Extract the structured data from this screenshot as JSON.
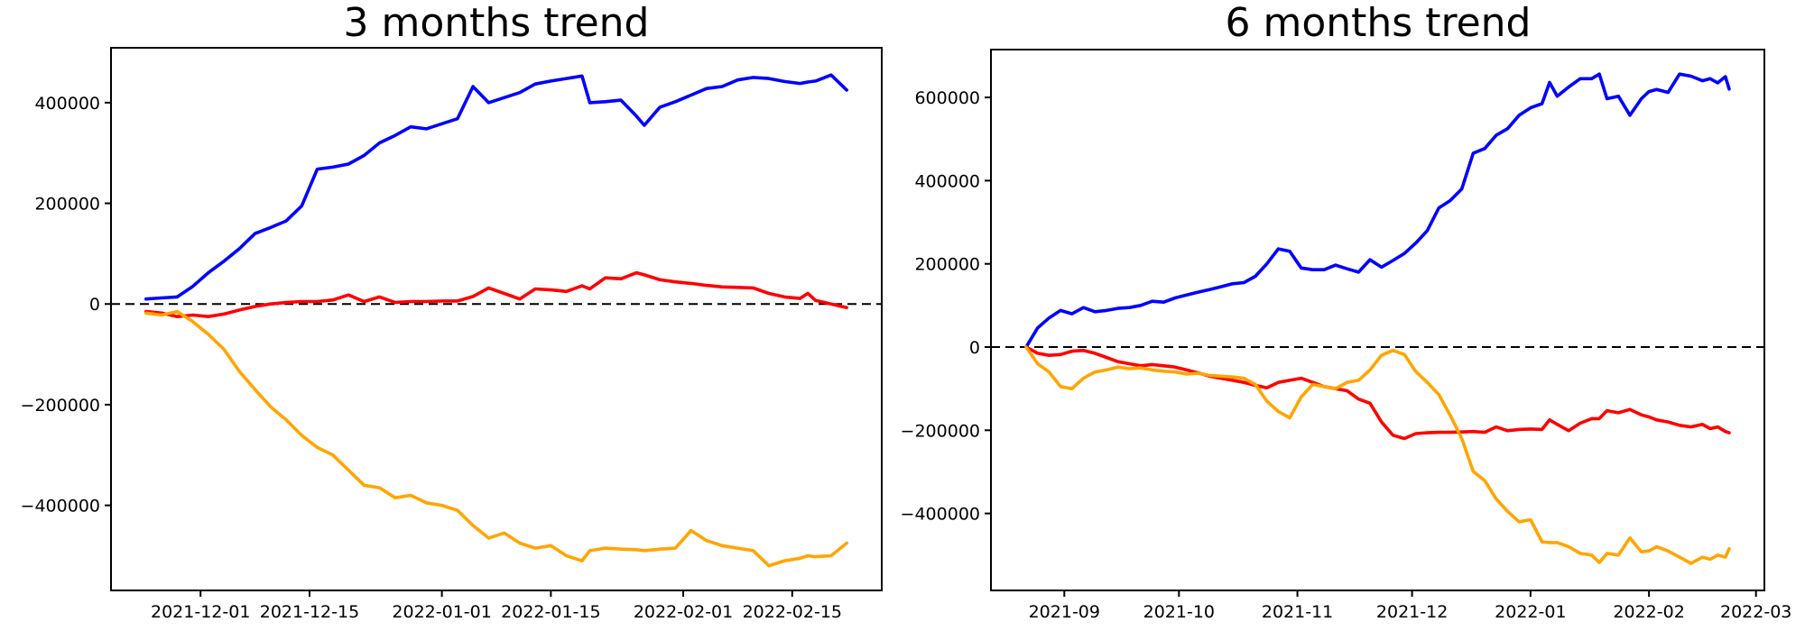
{
  "figure": {
    "background": "#ffffff",
    "spine_color": "#000000",
    "tick_color": "#000000"
  },
  "chart_data": [
    {
      "type": "line",
      "title": "3 months trend",
      "grid": false,
      "legend": null,
      "zero_line": {
        "style": "dashed",
        "color": "#000000",
        "y": 0
      },
      "x_axis": {
        "tick_labels": [
          "2021-12-01",
          "2021-12-15",
          "2022-01-01",
          "2022-01-15",
          "2022-02-01",
          "2022-02-15"
        ],
        "tick_dates": [
          "2021-12-01",
          "2021-12-15",
          "2022-01-01",
          "2022-01-15",
          "2022-02-01",
          "2022-02-15"
        ]
      },
      "y_axis": {
        "ylim": [
          -569000,
          509000
        ],
        "tick_values": [
          -400000,
          -200000,
          0,
          200000,
          400000
        ],
        "tick_labels": [
          "−400000",
          "−200000",
          "0",
          "200000",
          "400000"
        ]
      },
      "x": [
        "2021-11-24",
        "2021-11-26",
        "2021-11-28",
        "2021-11-30",
        "2021-12-02",
        "2021-12-04",
        "2021-12-06",
        "2021-12-08",
        "2021-12-10",
        "2021-12-12",
        "2021-12-14",
        "2021-12-16",
        "2021-12-18",
        "2021-12-20",
        "2021-12-22",
        "2021-12-24",
        "2021-12-26",
        "2021-12-28",
        "2021-12-30",
        "2022-01-01",
        "2022-01-03",
        "2022-01-05",
        "2022-01-07",
        "2022-01-09",
        "2022-01-11",
        "2022-01-13",
        "2022-01-15",
        "2022-01-17",
        "2022-01-19",
        "2022-01-20",
        "2022-01-22",
        "2022-01-24",
        "2022-01-26",
        "2022-01-27",
        "2022-01-29",
        "2022-01-31",
        "2022-02-02",
        "2022-02-04",
        "2022-02-06",
        "2022-02-08",
        "2022-02-10",
        "2022-02-12",
        "2022-02-14",
        "2022-02-16",
        "2022-02-17",
        "2022-02-18",
        "2022-02-20",
        "2022-02-22"
      ],
      "series": [
        {
          "name": "blue",
          "color": "#0000ff",
          "values": [
            10000,
            12000,
            14000,
            35000,
            62000,
            85000,
            110000,
            140000,
            152000,
            165000,
            195000,
            268000,
            272000,
            278000,
            295000,
            320000,
            335000,
            352000,
            348000,
            358000,
            368000,
            432000,
            400000,
            410000,
            420000,
            437000,
            443000,
            448000,
            453000,
            400000,
            402000,
            405000,
            373000,
            355000,
            391000,
            402000,
            415000,
            428000,
            432000,
            445000,
            450000,
            448000,
            442000,
            438000,
            441000,
            443000,
            455000,
            425000
          ]
        },
        {
          "name": "red",
          "color": "#ff0000",
          "values": [
            -15000,
            -18000,
            -25000,
            -22000,
            -25000,
            -20000,
            -12000,
            -5000,
            0,
            3000,
            5000,
            5000,
            8000,
            18000,
            5000,
            14000,
            3000,
            5000,
            5000,
            6000,
            6000,
            15000,
            32000,
            21000,
            10000,
            30000,
            28000,
            25000,
            36000,
            30000,
            52000,
            50000,
            62000,
            58000,
            48000,
            44000,
            41000,
            37000,
            34000,
            33000,
            32000,
            21000,
            14000,
            11000,
            21000,
            7000,
            0,
            -7000
          ]
        },
        {
          "name": "orange",
          "color": "#ffa500",
          "values": [
            -18000,
            -22000,
            -15000,
            -35000,
            -60000,
            -90000,
            -134000,
            -170000,
            -204000,
            -230000,
            -261000,
            -285000,
            -300000,
            -330000,
            -360000,
            -365000,
            -385000,
            -380000,
            -395000,
            -400000,
            -410000,
            -440000,
            -465000,
            -455000,
            -475000,
            -485000,
            -480000,
            -500000,
            -510000,
            -490000,
            -485000,
            -487000,
            -488000,
            -490000,
            -487000,
            -485000,
            -450000,
            -470000,
            -480000,
            -485000,
            -490000,
            -520000,
            -510000,
            -505000,
            -500000,
            -502000,
            -500000,
            -475000
          ]
        }
      ]
    },
    {
      "type": "line",
      "title": "6 months trend",
      "grid": false,
      "legend": null,
      "zero_line": {
        "style": "dashed",
        "color": "#000000",
        "y": 0
      },
      "x_axis": {
        "tick_labels": [
          "2021-09",
          "2021-10",
          "2021-11",
          "2021-12",
          "2022-01",
          "2022-02",
          "2022-03"
        ],
        "tick_dates": [
          "2021-09-01",
          "2021-10-01",
          "2021-11-01",
          "2021-12-01",
          "2022-01-01",
          "2022-02-01",
          "2022-03-01"
        ]
      },
      "y_axis": {
        "ylim": [
          -585000,
          715000
        ],
        "tick_values": [
          -400000,
          -200000,
          0,
          200000,
          400000,
          600000
        ],
        "tick_labels": [
          "−400000",
          "−200000",
          "0",
          "200000",
          "400000",
          "600000"
        ]
      },
      "x": [
        "2021-08-22",
        "2021-08-25",
        "2021-08-28",
        "2021-08-31",
        "2021-09-03",
        "2021-09-06",
        "2021-09-09",
        "2021-09-12",
        "2021-09-15",
        "2021-09-18",
        "2021-09-21",
        "2021-09-24",
        "2021-09-27",
        "2021-09-30",
        "2021-10-03",
        "2021-10-06",
        "2021-10-09",
        "2021-10-12",
        "2021-10-15",
        "2021-10-18",
        "2021-10-21",
        "2021-10-24",
        "2021-10-27",
        "2021-10-30",
        "2021-11-02",
        "2021-11-05",
        "2021-11-08",
        "2021-11-11",
        "2021-11-14",
        "2021-11-17",
        "2021-11-20",
        "2021-11-23",
        "2021-11-26",
        "2021-11-29",
        "2021-12-02",
        "2021-12-05",
        "2021-12-08",
        "2021-12-11",
        "2021-12-14",
        "2021-12-17",
        "2021-12-20",
        "2021-12-23",
        "2021-12-26",
        "2021-12-29",
        "2022-01-01",
        "2022-01-04",
        "2022-01-06",
        "2022-01-08",
        "2022-01-11",
        "2022-01-14",
        "2022-01-17",
        "2022-01-19",
        "2022-01-21",
        "2022-01-24",
        "2022-01-27",
        "2022-01-30",
        "2022-02-01",
        "2022-02-03",
        "2022-02-06",
        "2022-02-09",
        "2022-02-12",
        "2022-02-15",
        "2022-02-17",
        "2022-02-19",
        "2022-02-21",
        "2022-02-22"
      ],
      "series": [
        {
          "name": "blue",
          "color": "#0000ff",
          "values": [
            0,
            46000,
            70000,
            88000,
            80000,
            95000,
            85000,
            88000,
            93000,
            95000,
            100000,
            110000,
            108000,
            118000,
            125000,
            132000,
            138000,
            145000,
            152000,
            155000,
            170000,
            200000,
            236000,
            230000,
            190000,
            186000,
            186000,
            197000,
            188000,
            180000,
            210000,
            192000,
            208000,
            225000,
            250000,
            280000,
            334000,
            352000,
            380000,
            466000,
            477000,
            509000,
            525000,
            557000,
            575000,
            585000,
            636000,
            603000,
            625000,
            645000,
            645000,
            656000,
            597000,
            603000,
            557000,
            597000,
            614000,
            619000,
            612000,
            656000,
            651000,
            640000,
            645000,
            635000,
            650000,
            620000
          ]
        },
        {
          "name": "red",
          "color": "#ff0000",
          "values": [
            0,
            -15000,
            -20000,
            -18000,
            -10000,
            -8000,
            -15000,
            -25000,
            -35000,
            -40000,
            -45000,
            -42000,
            -45000,
            -48000,
            -55000,
            -62000,
            -70000,
            -75000,
            -80000,
            -85000,
            -92000,
            -98000,
            -85000,
            -80000,
            -75000,
            -85000,
            -95000,
            -100000,
            -105000,
            -125000,
            -135000,
            -180000,
            -212000,
            -220000,
            -208000,
            -206000,
            -205000,
            -205000,
            -204000,
            -203000,
            -205000,
            -192000,
            -201000,
            -198000,
            -197000,
            -198000,
            -175000,
            -186000,
            -201000,
            -183000,
            -172000,
            -172000,
            -153000,
            -158000,
            -150000,
            -163000,
            -168000,
            -175000,
            -180000,
            -188000,
            -192000,
            -186000,
            -196000,
            -192000,
            -203000,
            -206000
          ]
        },
        {
          "name": "orange",
          "color": "#ffa500",
          "values": [
            0,
            -40000,
            -60000,
            -95000,
            -100000,
            -75000,
            -60000,
            -55000,
            -48000,
            -52000,
            -50000,
            -55000,
            -58000,
            -60000,
            -65000,
            -63000,
            -68000,
            -70000,
            -72000,
            -75000,
            -90000,
            -130000,
            -155000,
            -170000,
            -120000,
            -90000,
            -95000,
            -100000,
            -85000,
            -80000,
            -55000,
            -20000,
            -8000,
            -18000,
            -59000,
            -85000,
            -114000,
            -164000,
            -220000,
            -299000,
            -321000,
            -365000,
            -395000,
            -420000,
            -415000,
            -468000,
            -470000,
            -470000,
            -480000,
            -496000,
            -500000,
            -518000,
            -496000,
            -500000,
            -459000,
            -492000,
            -490000,
            -480000,
            -490000,
            -505000,
            -520000,
            -505000,
            -510000,
            -500000,
            -505000,
            -485000
          ]
        }
      ]
    }
  ]
}
